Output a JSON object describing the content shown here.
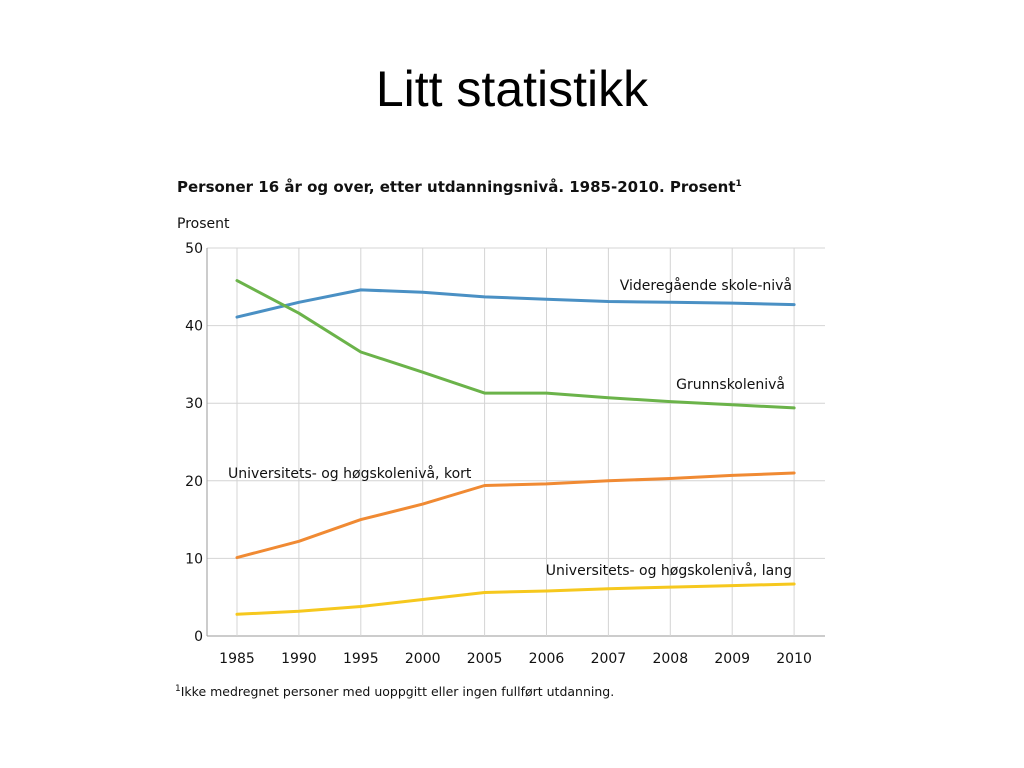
{
  "slide": {
    "title": "Litt statistikk"
  },
  "chart_data": {
    "type": "line",
    "title": "Personer 16 år og over, etter utdanningsnivå. 1985-2010. Prosent",
    "title_footnote_mark": "1",
    "ylabel": "Prosent",
    "xlabel": "",
    "ylim": [
      0,
      50
    ],
    "yticks": [
      0,
      10,
      20,
      30,
      40,
      50
    ],
    "categories": [
      "1985",
      "1990",
      "1995",
      "2000",
      "2005",
      "2006",
      "2007",
      "2008",
      "2009",
      "2010"
    ],
    "grid": true,
    "series": [
      {
        "name": "Videregående skole-nivå",
        "color": "#4a90c4",
        "values": [
          41.1,
          43.0,
          44.6,
          44.3,
          43.7,
          43.4,
          43.1,
          43.0,
          42.9,
          42.7
        ]
      },
      {
        "name": "Grunnskolenivå",
        "color": "#6bb34a",
        "values": [
          45.8,
          41.6,
          36.6,
          34.0,
          31.3,
          31.3,
          30.7,
          30.2,
          29.8,
          29.4
        ]
      },
      {
        "name": "Universitets- og høgskolenivå, kort",
        "color": "#f08a33",
        "values": [
          10.1,
          12.2,
          15.0,
          17.0,
          19.4,
          19.6,
          20.0,
          20.3,
          20.7,
          21.0
        ]
      },
      {
        "name": "Universitets- og høgskolenivå, lang",
        "color": "#f6c81e",
        "values": [
          2.8,
          3.2,
          3.8,
          4.7,
          5.6,
          5.8,
          6.1,
          6.3,
          6.5,
          6.7
        ]
      }
    ],
    "footnote_mark": "1",
    "footnote": "Ikke medregnet personer med uoppgitt eller ingen fullført utdanning."
  }
}
